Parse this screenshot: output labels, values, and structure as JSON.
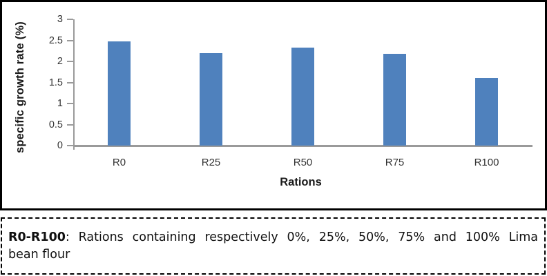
{
  "chart_data": {
    "type": "bar",
    "title": "",
    "categories": [
      "R0",
      "R25",
      "R50",
      "R75",
      "R100"
    ],
    "values": [
      2.47,
      2.2,
      2.32,
      2.18,
      1.6
    ],
    "xlabel": "Rations",
    "ylabel": "specific growth rate (%)",
    "ylim": [
      0,
      3
    ],
    "yticks": [
      "0",
      "0.5",
      "1",
      "1.5",
      "2",
      "2.5",
      "3"
    ],
    "grid": false,
    "legend": "none",
    "bar_color": "#4F81BD",
    "axis_color": "#9A9A9A"
  },
  "caption": {
    "term": "R0-R100",
    "line1_rest": ": Rations containing respectively 0%, 25%, 50%, 75% and 100% Lima",
    "line2": "bean flour",
    "full_text": "R0-R100: Rations containing respectively 0%, 25%, 50%, 75% and 100% Lima bean flour"
  }
}
